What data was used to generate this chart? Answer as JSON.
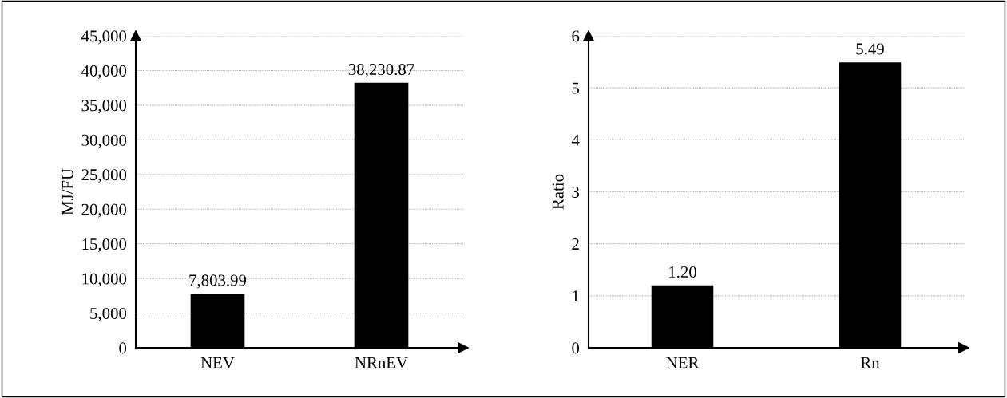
{
  "chart_data": [
    {
      "type": "bar",
      "ylabel": "MJ/FU",
      "categories": [
        "NEV",
        "NRnEV"
      ],
      "values": [
        7803.99,
        38230.87
      ],
      "value_labels": [
        "7,803.99",
        "38,230.87"
      ],
      "color": "#000000",
      "ylim": [
        0,
        45000
      ],
      "yticks": [
        0,
        {
          "value": 5000,
          "label": "5,000"
        },
        {
          "value": 10000,
          "label": "10,000"
        },
        {
          "value": 15000,
          "label": "15,000"
        },
        {
          "value": 20000,
          "label": "20,000"
        },
        {
          "value": 25000,
          "label": "25,000"
        },
        {
          "value": 30000,
          "label": "30,000"
        },
        {
          "value": 35000,
          "label": "35,000"
        },
        {
          "value": 40000,
          "label": "40,000"
        },
        {
          "value": 45000,
          "label": "45,000"
        }
      ],
      "grid": "y"
    },
    {
      "type": "bar",
      "ylabel": "Ratio",
      "categories": [
        "NER",
        "Rn"
      ],
      "values": [
        1.2,
        5.49
      ],
      "value_labels": [
        "1.20",
        "5.49"
      ],
      "color": "#000000",
      "ylim": [
        0,
        6
      ],
      "yticks": [
        0,
        1,
        2,
        3,
        4,
        5,
        6
      ],
      "grid": "y"
    }
  ]
}
